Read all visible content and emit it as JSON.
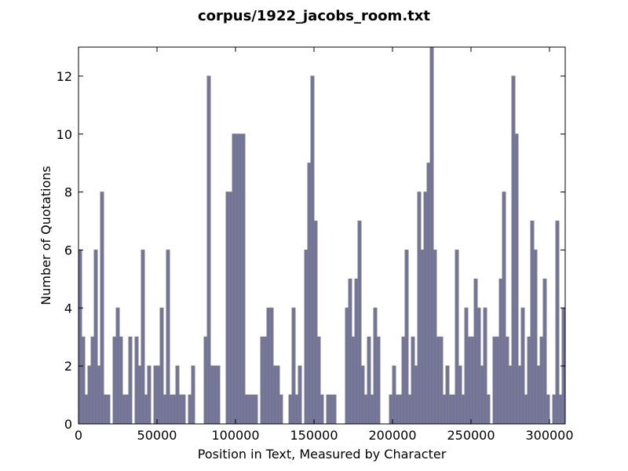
{
  "chart_data": {
    "type": "histogram",
    "title": "corpus/1922_jacobs_room.txt",
    "xlabel": "Position in Text, Measured by Character",
    "ylabel": "Number of Quotations",
    "bins": [
      0,
      2000,
      4000,
      6000,
      8000,
      10000,
      12000,
      14000,
      16000,
      18000,
      20000,
      22000,
      24000,
      26000,
      28000,
      30000,
      32000,
      34000,
      36000,
      38000,
      40000,
      42000,
      44000,
      46000,
      48000,
      50000,
      52000,
      54000,
      56000,
      58000,
      60000,
      62000,
      64000,
      66000,
      68000,
      70000,
      72000,
      74000,
      76000,
      78000,
      80000,
      82000,
      84000,
      86000,
      88000,
      90000,
      92000,
      94000,
      96000,
      98000,
      100000,
      102000,
      104000,
      106000,
      108000,
      110000,
      112000,
      114000,
      116000,
      118000,
      120000,
      122000,
      124000,
      126000,
      128000,
      130000,
      132000,
      134000,
      136000,
      138000,
      140000,
      142000,
      144000,
      146000,
      148000,
      150000,
      152000,
      154000,
      156000,
      158000,
      160000,
      162000,
      164000,
      166000,
      168000,
      170000,
      172000,
      174000,
      176000,
      178000,
      180000,
      182000,
      184000,
      186000,
      188000,
      190000,
      192000,
      194000,
      196000,
      198000,
      200000,
      202000,
      204000,
      206000,
      208000,
      210000,
      212000,
      214000,
      216000,
      218000,
      220000,
      222000,
      224000,
      226000,
      228000,
      230000,
      232000,
      234000,
      236000,
      238000,
      240000,
      242000,
      244000,
      246000,
      248000,
      250000,
      252000,
      254000,
      256000,
      258000,
      260000,
      262000,
      264000,
      266000,
      268000,
      270000,
      272000,
      274000,
      276000,
      278000,
      280000,
      282000,
      284000,
      286000,
      288000,
      290000,
      292000,
      294000,
      296000,
      298000,
      300000,
      302000,
      304000,
      306000,
      308000,
      310000
    ],
    "values": [
      6,
      3,
      1,
      2,
      3,
      6,
      2,
      8,
      1,
      1,
      0,
      3,
      4,
      3,
      1,
      1,
      3,
      0,
      3,
      2,
      6,
      1,
      2,
      0,
      2,
      2,
      4,
      1,
      6,
      1,
      1,
      2,
      1,
      1,
      0,
      1,
      2,
      0,
      0,
      0,
      3,
      12,
      2,
      2,
      2,
      0,
      0,
      8,
      8,
      10,
      10,
      10,
      10,
      1,
      1,
      1,
      1,
      0,
      3,
      3,
      4,
      4,
      2,
      2,
      1,
      0,
      0,
      1,
      4,
      1,
      2,
      0,
      6,
      9,
      12,
      7,
      3,
      1,
      0,
      1,
      1,
      1,
      0,
      0,
      0,
      4,
      5,
      3,
      5,
      7,
      2,
      1,
      3,
      1,
      4,
      3,
      0,
      0,
      0,
      1,
      2,
      1,
      1,
      3,
      6,
      1,
      3,
      2,
      8,
      6,
      8,
      9,
      13,
      6,
      3,
      3,
      1,
      2,
      1,
      1,
      6,
      2,
      1,
      4,
      3,
      3,
      5,
      4,
      2,
      4,
      1,
      0,
      3,
      3,
      5,
      8,
      3,
      2,
      12,
      10,
      2,
      4,
      1,
      3,
      7,
      6,
      2,
      3,
      5,
      1,
      0,
      1,
      7,
      1,
      4
    ],
    "color": "#72729f",
    "edgecolor": "#808080",
    "xlim": [
      0,
      310000
    ],
    "ylim": [
      0,
      13
    ],
    "xticks": [
      0,
      50000,
      100000,
      150000,
      200000,
      250000,
      300000
    ],
    "yticks": [
      0,
      2,
      4,
      6,
      8,
      10,
      12
    ],
    "grid": false
  }
}
